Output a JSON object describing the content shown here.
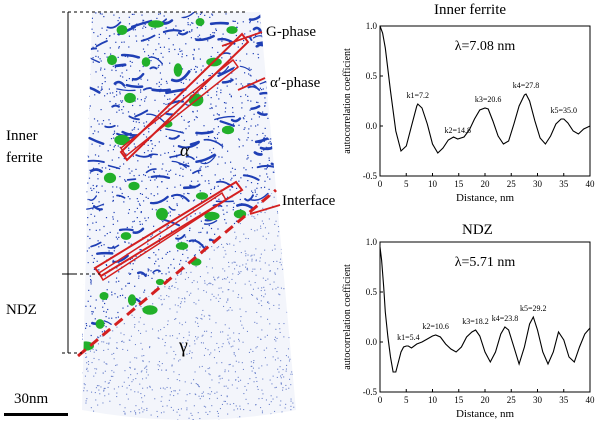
{
  "left_panel": {
    "labels": {
      "g_phase": "G-phase",
      "alpha_prime_phase": "α′-phase",
      "alpha": "α",
      "interface": "Interface",
      "gamma": "γ",
      "inner_ferrite": "Inner\nferrite",
      "ndz": "NDZ",
      "scale_bar": "30nm"
    },
    "colors": {
      "ferrite_atoms": "#1f3fb5",
      "austenite_atoms": "#6f85cc",
      "g_phase_particles": "#22b02a",
      "alpha_prime_boxes": "#d42020",
      "interface_line": "#d42020"
    }
  },
  "chart_data": [
    {
      "type": "line",
      "title": "Inner ferrite",
      "annotation": "λ=7.08 nm",
      "xlabel": "Distance, nm",
      "ylabel": "autocorrelation coefficient",
      "xlim": [
        0,
        40
      ],
      "ylim": [
        -0.5,
        1.0
      ],
      "xticks": [
        "0",
        "5",
        "10",
        "15",
        "20",
        "25",
        "30",
        "35",
        "40"
      ],
      "yticks": [
        "-0.5",
        "0.0",
        "0.5",
        "1.0"
      ],
      "series": [
        {
          "x": [
            0,
            0.5,
            1,
            2,
            3,
            4,
            5,
            6,
            7,
            7.2,
            8,
            9,
            10,
            11,
            12,
            13,
            14,
            14.8,
            16,
            17,
            18,
            19,
            20,
            20.6,
            21.5,
            22.5,
            23.5,
            24.5,
            25.5,
            26.5,
            27.5,
            27.8,
            28.5,
            29.5,
            30.5,
            31.5,
            32.5,
            33.5,
            34.5,
            35.0,
            35.8,
            36.8,
            37.8,
            38.8,
            40
          ],
          "y": [
            1.0,
            0.93,
            0.78,
            0.35,
            -0.05,
            -0.25,
            -0.2,
            0.0,
            0.2,
            0.22,
            0.18,
            0.02,
            -0.18,
            -0.27,
            -0.22,
            -0.14,
            -0.11,
            -0.13,
            -0.11,
            -0.04,
            0.07,
            0.16,
            0.18,
            0.17,
            0.05,
            -0.1,
            -0.18,
            -0.15,
            0.02,
            0.2,
            0.31,
            0.32,
            0.25,
            0.05,
            -0.12,
            -0.18,
            -0.1,
            0.02,
            0.07,
            0.07,
            0.03,
            -0.05,
            -0.08,
            -0.03,
            0.0
          ]
        }
      ],
      "peak_labels": [
        {
          "text": "k1=7.2",
          "x": 7.2,
          "y": 0.22
        },
        {
          "text": "k2=14.8",
          "x": 14.8,
          "y": -0.13
        },
        {
          "text": "k3=20.6",
          "x": 20.6,
          "y": 0.18
        },
        {
          "text": "k4=27.8",
          "x": 27.8,
          "y": 0.32
        },
        {
          "text": "k5=35.0",
          "x": 35.0,
          "y": 0.07
        }
      ]
    },
    {
      "type": "line",
      "title": "NDZ",
      "annotation": "λ=5.71 nm",
      "xlabel": "Distance, nm",
      "ylabel": "autocorrelation coefficient",
      "xlim": [
        0,
        40
      ],
      "ylim": [
        -0.5,
        1.0
      ],
      "xticks": [
        "0",
        "5",
        "10",
        "15",
        "20",
        "25",
        "30",
        "35",
        "40"
      ],
      "yticks": [
        "-0.5",
        "0.0",
        "0.5",
        "1.0"
      ],
      "series": [
        {
          "x": [
            0,
            0.3,
            0.7,
            1,
            1.5,
            2,
            2.5,
            3,
            3.5,
            4,
            4.5,
            5,
            5.4,
            6,
            7,
            8,
            9,
            10,
            10.6,
            11.5,
            12.5,
            13.5,
            14.5,
            15.5,
            16.5,
            17.5,
            18.2,
            19,
            20,
            21,
            22,
            23,
            23.8,
            24.5,
            25.5,
            26.5,
            27.5,
            28.5,
            29.2,
            30,
            31,
            32,
            33,
            34,
            35,
            36,
            37,
            38,
            39,
            40
          ],
          "y": [
            0.95,
            0.82,
            0.55,
            0.3,
            0.05,
            -0.15,
            -0.3,
            -0.3,
            -0.2,
            -0.1,
            -0.05,
            -0.04,
            -0.04,
            -0.06,
            -0.02,
            0.0,
            0.03,
            0.06,
            0.07,
            0.05,
            -0.02,
            -0.07,
            -0.1,
            -0.05,
            0.05,
            0.1,
            0.12,
            0.06,
            -0.1,
            -0.2,
            -0.1,
            0.08,
            0.15,
            0.12,
            -0.05,
            -0.22,
            -0.05,
            0.18,
            0.25,
            0.12,
            -0.1,
            -0.22,
            -0.1,
            0.1,
            0.02,
            -0.15,
            -0.2,
            -0.05,
            0.08,
            0.14
          ]
        }
      ],
      "peak_labels": [
        {
          "text": "k1=5.4",
          "x": 5.4,
          "y": -0.04
        },
        {
          "text": "k2=10.6",
          "x": 10.6,
          "y": 0.07
        },
        {
          "text": "k3=18.2",
          "x": 18.2,
          "y": 0.12
        },
        {
          "text": "k4=23.8",
          "x": 23.8,
          "y": 0.15
        },
        {
          "text": "k5=29.2",
          "x": 29.2,
          "y": 0.25
        }
      ]
    }
  ]
}
